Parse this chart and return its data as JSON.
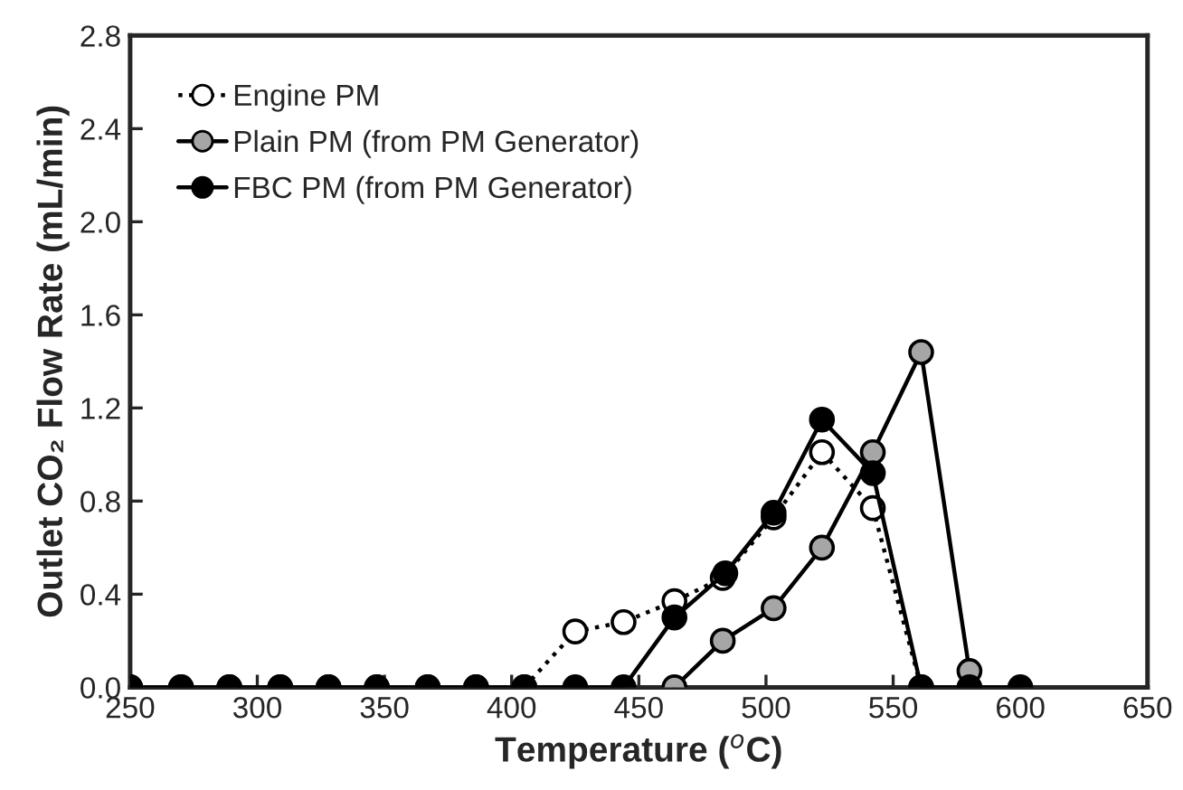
{
  "chart_data": {
    "type": "line",
    "xlabel": "Temperature ($^{o}$C)",
    "ylabel": "Outlet CO₂ Flow Rate (mL/min)",
    "xlim": [
      250,
      650
    ],
    "xticks": [
      250,
      300,
      350,
      400,
      450,
      500,
      550,
      600,
      650
    ],
    "ylim": [
      0,
      2.8
    ],
    "yticks": [
      {
        "value": 0,
        "label": "0.0"
      },
      0.4,
      0.8,
      1.2,
      1.6,
      {
        "value": 2,
        "label": "2.0"
      },
      2.4,
      2.8
    ],
    "grid": false,
    "legend": "top left",
    "marker": "circle",
    "series": [
      {
        "name": "Engine PM",
        "color": "#ffffff",
        "line_style": "dotted",
        "x": [
          250,
          270,
          289,
          309,
          328,
          347,
          367,
          386,
          405,
          425,
          444,
          464,
          483,
          503,
          522,
          542,
          561
        ],
        "values": [
          0,
          0,
          0,
          0,
          0,
          0,
          0,
          0,
          0,
          0.24,
          0.28,
          0.37,
          0.47,
          0.73,
          1.01,
          0.77,
          0
        ]
      },
      {
        "name": "Plain PM (from PM Generator)",
        "color": "#a6a6a6",
        "line_style": "solid",
        "x": [
          464,
          483,
          503,
          522,
          542,
          561,
          580
        ],
        "values": [
          0,
          0.2,
          0.34,
          0.6,
          1.01,
          1.44,
          0.07
        ]
      },
      {
        "name": "FBC PM (from PM Generator)",
        "color": "#000000",
        "line_style": "solid",
        "x": [
          250,
          270,
          289,
          309,
          328,
          347,
          367,
          386,
          405,
          425,
          444,
          464,
          484,
          503,
          522,
          542,
          561,
          580,
          600
        ],
        "values": [
          0,
          0,
          0,
          0,
          0,
          0,
          0,
          0,
          0,
          0,
          0,
          0.3,
          0.49,
          0.75,
          1.15,
          0.92,
          0,
          0,
          0
        ]
      }
    ]
  }
}
